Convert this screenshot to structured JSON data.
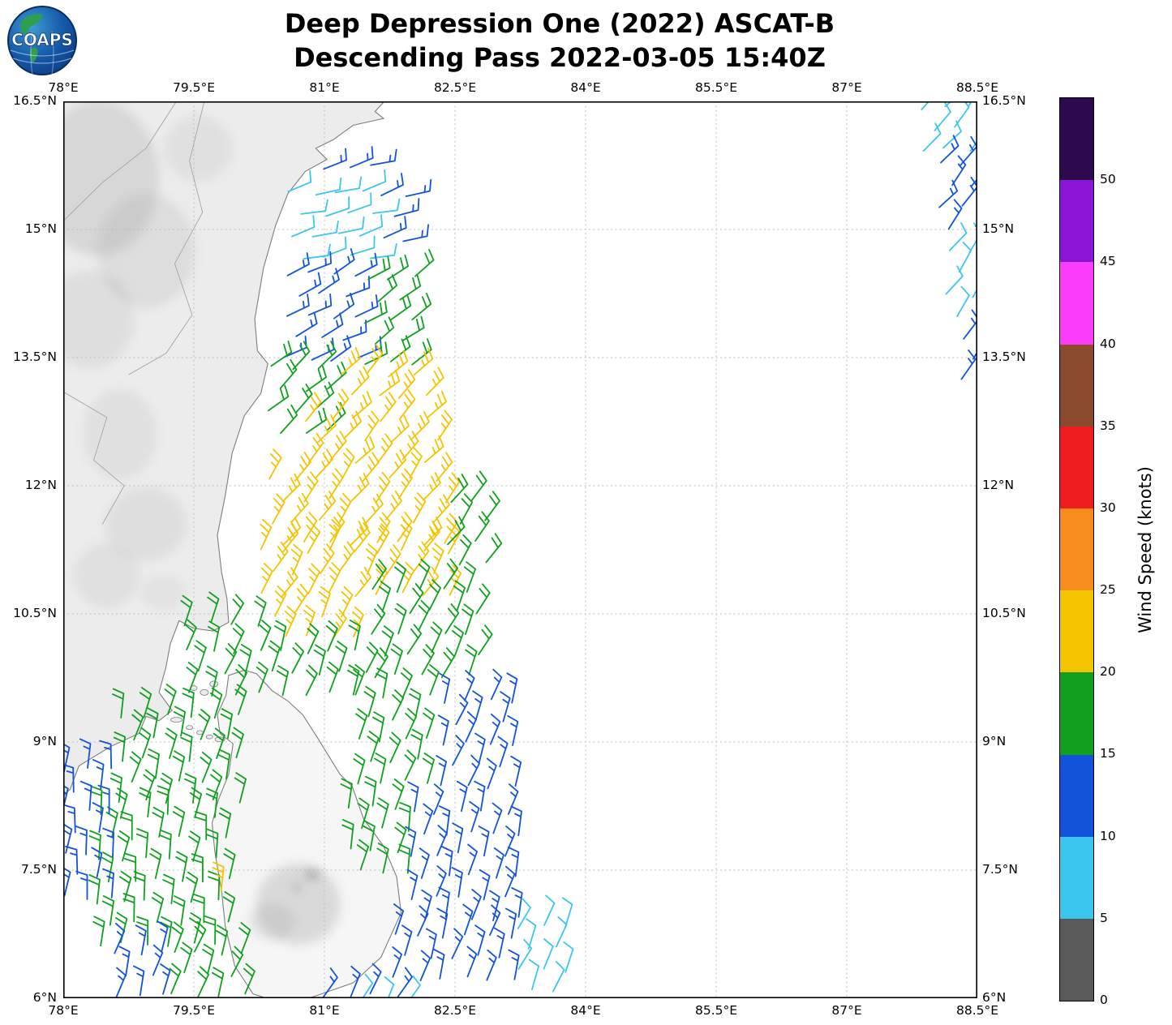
{
  "logo": {
    "text": "COAPS"
  },
  "title": {
    "line1": "Deep Depression One (2022) ASCAT-B",
    "line2": "Descending Pass 2022-03-05 15:40Z"
  },
  "axes": {
    "x_ticks": [
      {
        "label": "78°E",
        "lon": 78
      },
      {
        "label": "79.5°E",
        "lon": 79.5
      },
      {
        "label": "81°E",
        "lon": 81
      },
      {
        "label": "82.5°E",
        "lon": 82.5
      },
      {
        "label": "84°E",
        "lon": 84
      },
      {
        "label": "85.5°E",
        "lon": 85.5
      },
      {
        "label": "87°E",
        "lon": 87
      },
      {
        "label": "88.5°E",
        "lon": 88.5
      }
    ],
    "y_ticks": [
      {
        "label": "16.5°N",
        "lat": 16.5
      },
      {
        "label": "15°N",
        "lat": 15
      },
      {
        "label": "13.5°N",
        "lat": 13.5
      },
      {
        "label": "12°N",
        "lat": 12
      },
      {
        "label": "10.5°N",
        "lat": 10.5
      },
      {
        "label": "9°N",
        "lat": 9
      },
      {
        "label": "7.5°N",
        "lat": 7.5
      },
      {
        "label": "6°N",
        "lat": 6
      }
    ]
  },
  "colorbar": {
    "label": "Wind Speed (knots)",
    "max_value": 55,
    "tick_values": [
      0,
      5,
      10,
      15,
      20,
      25,
      30,
      35,
      40,
      45,
      50
    ],
    "segments": [
      {
        "range": "0-5",
        "color": "#595959"
      },
      {
        "range": "5-10",
        "color": "#3bc6f0"
      },
      {
        "range": "10-15",
        "color": "#1353d9"
      },
      {
        "range": "15-20",
        "color": "#0fa01e"
      },
      {
        "range": "20-25",
        "color": "#f5c400"
      },
      {
        "range": "25-30",
        "color": "#f78c1e"
      },
      {
        "range": "30-35",
        "color": "#ef1d1d"
      },
      {
        "range": "35-40",
        "color": "#8a4a2e"
      },
      {
        "range": "40-45",
        "color": "#fb3dfb"
      },
      {
        "range": "45-50",
        "color": "#8a15d4"
      },
      {
        "range": "50-55",
        "color": "#2d0a50"
      }
    ]
  },
  "chart_data": {
    "type": "windbarb-map",
    "lon_range": [
      78,
      88.5
    ],
    "lat_range": [
      6,
      16.5
    ],
    "grid": "dashed",
    "speed_classes": {
      "cyan": {
        "knots": 10,
        "range_kt": "5-10",
        "color": "#3bc6f0"
      },
      "blue": {
        "knots": 15,
        "range_kt": "10-15",
        "color": "#1353d9"
      },
      "green": {
        "knots": 20,
        "range_kt": "15-20",
        "color": "#0fa01e"
      },
      "yellow": {
        "knots": 25,
        "range_kt": "20-25",
        "color": "#f5c400"
      }
    },
    "barb_groups": [
      [
        "A1",
        87.8,
        88.55,
        15.9,
        16.55,
        "cyan",
        42
      ],
      [
        "A2",
        88.0,
        88.55,
        14.85,
        15.9,
        "blue",
        40
      ],
      [
        "A3",
        88.1,
        88.55,
        13.85,
        14.85,
        "cyan",
        36
      ],
      [
        "A4",
        88.28,
        88.55,
        13.2,
        13.85,
        "blue",
        34
      ],
      [
        "B0",
        80.95,
        81.8,
        15.55,
        15.85,
        "blue",
        72
      ],
      [
        "B1",
        80.55,
        81.6,
        14.6,
        15.55,
        "cyan",
        75
      ],
      [
        "B2",
        81.6,
        82.05,
        14.8,
        15.5,
        "blue",
        70
      ],
      [
        "B3",
        80.5,
        81.42,
        13.5,
        14.6,
        "blue",
        62
      ],
      [
        "B4",
        81.42,
        82.15,
        13.42,
        14.55,
        "green",
        56
      ],
      [
        "B5",
        80.32,
        81.15,
        12.45,
        13.5,
        "green",
        48
      ],
      [
        "Y1",
        81.15,
        82.2,
        12.9,
        13.42,
        "yellow",
        46
      ],
      [
        "Y2",
        80.75,
        82.38,
        12.2,
        12.9,
        "yellow",
        42
      ],
      [
        "Y3",
        80.32,
        82.55,
        11.35,
        12.2,
        "yellow",
        37
      ],
      [
        "Y4",
        80.2,
        82.45,
        10.6,
        11.35,
        "yellow",
        31
      ],
      [
        "Y5",
        80.35,
        81.5,
        10.18,
        10.6,
        "yellow",
        26
      ],
      [
        "G1",
        82.38,
        82.88,
        10.9,
        11.95,
        "green",
        36
      ],
      [
        "G2",
        81.5,
        82.8,
        9.65,
        10.9,
        "green",
        26
      ],
      [
        "G3",
        79.38,
        81.5,
        9.42,
        10.18,
        "green",
        20
      ],
      [
        "G4",
        79.35,
        80.35,
        10.18,
        10.5,
        "green",
        22
      ],
      [
        "G5",
        78.6,
        80.05,
        8.25,
        9.42,
        "green",
        14
      ],
      [
        "G6",
        78.35,
        79.95,
        6.65,
        8.25,
        "green",
        8
      ],
      [
        "G7",
        79.2,
        80.1,
        5.9,
        6.65,
        "green",
        20
      ],
      [
        "BL1",
        77.95,
        78.62,
        7.15,
        8.8,
        "blue",
        6
      ],
      [
        "BL2",
        78.55,
        79.2,
        5.92,
        6.65,
        "blue",
        16
      ],
      [
        "E1",
        81.32,
        82.3,
        8.35,
        9.65,
        "green",
        18
      ],
      [
        "E2",
        81.22,
        82.05,
        7.35,
        8.35,
        "green",
        12
      ],
      [
        "E3",
        82.3,
        83.25,
        8.3,
        9.6,
        "blue",
        20
      ],
      [
        "E4",
        81.95,
        83.35,
        6.85,
        8.3,
        "blue",
        15
      ],
      [
        "E5",
        81.75,
        83.18,
        6.12,
        6.85,
        "blue",
        18
      ],
      [
        "E6",
        83.18,
        83.82,
        6.0,
        6.95,
        "cyan",
        24
      ],
      [
        "E7",
        80.95,
        82.0,
        5.86,
        6.15,
        "blue",
        28
      ],
      [
        "E8",
        81.35,
        82.15,
        5.88,
        6.04,
        "cyan",
        30
      ],
      [
        "Y6",
        79.74,
        79.92,
        7.18,
        7.36,
        "yellow",
        10
      ]
    ]
  },
  "geo": {
    "india": [
      [
        77.8,
        16.6
      ],
      [
        81.78,
        16.6
      ],
      [
        81.58,
        16.38
      ],
      [
        81.68,
        16.3
      ],
      [
        81.33,
        16.22
      ],
      [
        81.1,
        16.05
      ],
      [
        80.9,
        15.95
      ],
      [
        81.03,
        15.82
      ],
      [
        80.78,
        15.68
      ],
      [
        80.58,
        15.42
      ],
      [
        80.44,
        15.05
      ],
      [
        80.3,
        14.55
      ],
      [
        80.2,
        13.95
      ],
      [
        80.23,
        13.58
      ],
      [
        80.35,
        13.43
      ],
      [
        80.27,
        13.08
      ],
      [
        80.08,
        12.82
      ],
      [
        79.94,
        12.38
      ],
      [
        79.86,
        11.88
      ],
      [
        79.77,
        11.42
      ],
      [
        79.82,
        10.98
      ],
      [
        79.88,
        10.68
      ],
      [
        79.9,
        10.4
      ],
      [
        79.72,
        10.3
      ],
      [
        79.5,
        10.33
      ],
      [
        79.33,
        10.42
      ],
      [
        79.23,
        10.15
      ],
      [
        79.18,
        9.88
      ],
      [
        79.1,
        9.58
      ],
      [
        79.25,
        9.37
      ],
      [
        79.1,
        9.25
      ],
      [
        78.95,
        9.3
      ],
      [
        78.87,
        9.1
      ],
      [
        78.55,
        8.95
      ],
      [
        78.18,
        8.72
      ],
      [
        78.08,
        8.45
      ],
      [
        77.85,
        8.2
      ],
      [
        77.75,
        8.1
      ]
    ],
    "sri_lanka": [
      [
        79.9,
        9.78
      ],
      [
        80.08,
        9.84
      ],
      [
        80.22,
        9.8
      ],
      [
        80.4,
        9.6
      ],
      [
        80.58,
        9.48
      ],
      [
        80.75,
        9.32
      ],
      [
        80.92,
        9.05
      ],
      [
        81.18,
        8.62
      ],
      [
        81.32,
        8.48
      ],
      [
        81.45,
        8.1
      ],
      [
        81.68,
        7.78
      ],
      [
        81.83,
        7.42
      ],
      [
        81.88,
        7.0
      ],
      [
        81.65,
        6.48
      ],
      [
        81.33,
        6.18
      ],
      [
        80.88,
        6.02
      ],
      [
        80.58,
        5.92
      ],
      [
        80.18,
        6.05
      ],
      [
        79.97,
        6.38
      ],
      [
        79.86,
        6.85
      ],
      [
        79.82,
        7.25
      ],
      [
        79.74,
        7.72
      ],
      [
        79.71,
        8.05
      ],
      [
        79.78,
        8.32
      ],
      [
        79.9,
        8.62
      ],
      [
        79.95,
        8.98
      ],
      [
        79.8,
        9.1
      ],
      [
        79.77,
        9.32
      ],
      [
        79.87,
        9.55
      ]
    ],
    "islands": [
      [
        79.3,
        9.26,
        7,
        3
      ],
      [
        79.45,
        9.17,
        4,
        2.5
      ],
      [
        79.57,
        9.11,
        4,
        2.5
      ],
      [
        79.68,
        9.06,
        4,
        2.5
      ],
      [
        79.8,
        9.03,
        6,
        3
      ],
      [
        79.62,
        9.58,
        5,
        3.5
      ],
      [
        79.5,
        9.63,
        4,
        3
      ],
      [
        79.73,
        9.68,
        5,
        3.5
      ]
    ],
    "boundaries": [
      [
        [
          79.3,
          16.5
        ],
        [
          78.95,
          15.95
        ],
        [
          78.45,
          15.55
        ],
        [
          78.0,
          15.1
        ]
      ],
      [
        [
          79.62,
          16.5
        ],
        [
          79.45,
          15.8
        ],
        [
          79.6,
          15.2
        ],
        [
          79.28,
          14.6
        ],
        [
          79.48,
          14.0
        ],
        [
          79.18,
          13.55
        ],
        [
          78.75,
          13.3
        ]
      ],
      [
        [
          78.0,
          13.1
        ],
        [
          78.5,
          12.8
        ],
        [
          78.35,
          12.3
        ],
        [
          78.7,
          12.0
        ],
        [
          78.45,
          11.55
        ]
      ]
    ],
    "terrain": [
      [
        78.4,
        15.6,
        75,
        95,
        0.22
      ],
      [
        78.95,
        14.75,
        60,
        70,
        0.16
      ],
      [
        78.3,
        13.95,
        55,
        60,
        0.14
      ],
      [
        79.55,
        15.95,
        42,
        40,
        0.13
      ],
      [
        78.65,
        12.6,
        45,
        55,
        0.12
      ],
      [
        78.95,
        11.55,
        50,
        45,
        0.14
      ],
      [
        78.5,
        10.95,
        40,
        40,
        0.12
      ],
      [
        79.15,
        10.75,
        28,
        22,
        0.1
      ],
      [
        80.7,
        7.1,
        52,
        50,
        0.28
      ],
      [
        80.86,
        7.45,
        9,
        7,
        0.6
      ],
      [
        80.68,
        7.3,
        6,
        5,
        0.5
      ],
      [
        80.4,
        6.9,
        28,
        22,
        0.2
      ]
    ]
  }
}
